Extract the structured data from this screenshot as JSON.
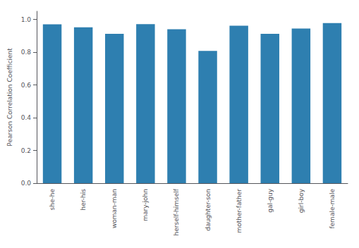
{
  "chart_data": {
    "type": "bar",
    "categories": [
      "she-he",
      "her-his",
      "woman-man",
      "mary-john",
      "herself-himself",
      "daughter-son",
      "mother-father",
      "gal-guy",
      "girl-boy",
      "female-male"
    ],
    "values": [
      0.97,
      0.952,
      0.912,
      0.972,
      0.94,
      0.808,
      0.962,
      0.912,
      0.945,
      0.978
    ],
    "color": "#2e7fb0",
    "ylabel": "Pearson Correlation Coefficient",
    "ylim": [
      0.0,
      1.05
    ],
    "yticks": [
      {
        "value": 0,
        "label": "0.0"
      },
      0.2,
      0.4,
      0.6,
      0.8,
      {
        "value": 1,
        "label": "1.0"
      }
    ],
    "grid": false
  }
}
